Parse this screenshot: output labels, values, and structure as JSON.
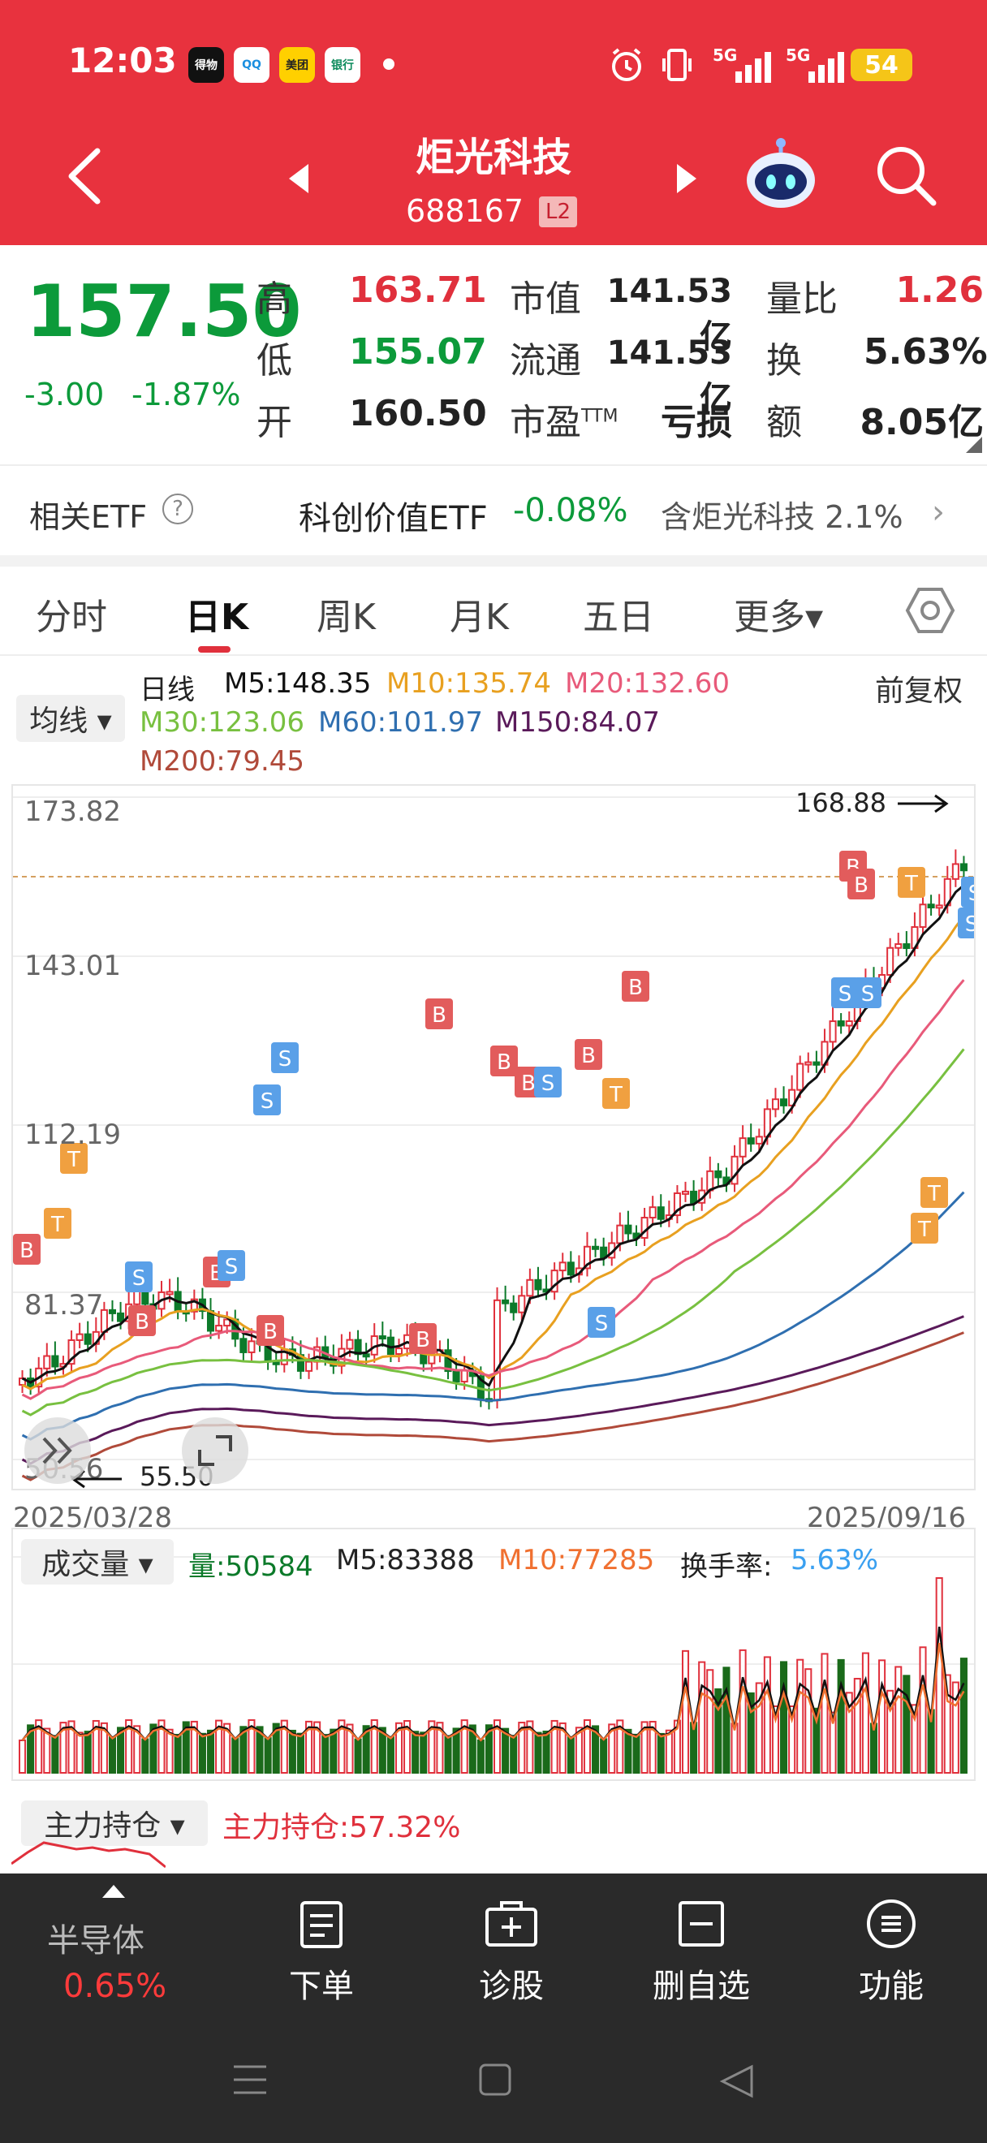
{
  "status_bar": {
    "time": "12:03",
    "apps": [
      "得物",
      "QQ",
      "美团",
      "银行"
    ],
    "net1": "5G",
    "net2": "5G",
    "battery": "54"
  },
  "header": {
    "stock_name": "炬光科技",
    "stock_code": "688167",
    "level_badge": "L2"
  },
  "quote": {
    "price": "157.50",
    "change": "-3.00",
    "change_pct": "-1.87%",
    "rows": [
      {
        "l1": "高",
        "v1": "163.71",
        "l2": "市值",
        "v2": "141.53亿",
        "l3": "量比",
        "v3": "1.26"
      },
      {
        "l1": "低",
        "v1": "155.07",
        "l2": "流通",
        "v2": "141.53亿",
        "l3": "换",
        "v3": "5.63%"
      },
      {
        "l1": "开",
        "v1": "160.50",
        "l2": "市盈",
        "l2_sup": "TTM",
        "v2": "亏损",
        "l3": "额",
        "v3": "8.05亿"
      }
    ]
  },
  "etf": {
    "label": "相关ETF",
    "help": "?",
    "name": "科创价值ETF",
    "change": "-0.08%",
    "contains": "含炬光科技 2.1%",
    "arrow": "›"
  },
  "tabs": [
    {
      "label": "分时"
    },
    {
      "label": "日K"
    },
    {
      "label": "周K"
    },
    {
      "label": "月K"
    },
    {
      "label": "五日"
    },
    {
      "label": "更多▾"
    }
  ],
  "indicators": {
    "ma_button": "均线 ▾",
    "period": "日线",
    "m5": "M5:148.35",
    "m10": "M10:135.74",
    "m20": "M20:132.60",
    "m30": "M30:123.06",
    "m60": "M60:101.97",
    "m150": "M150:84.07",
    "m200": "M200:79.45",
    "adjust": "前复权",
    "colors": {
      "m5": "#111111",
      "m10": "#e8a020",
      "m20": "#e85a7a",
      "m30": "#78c040",
      "m60": "#2f6fb0",
      "m150": "#5a1a5a",
      "m200": "#b04a3a"
    }
  },
  "chart": {
    "y_labels": [
      "173.82",
      "143.01",
      "112.19",
      "81.37",
      "50.56"
    ],
    "high_label": "168.88",
    "low_label": "55.50",
    "start_date": "2025/03/28",
    "end_date": "2025/09/16"
  },
  "volume": {
    "button": "成交量 ▾",
    "vol": "量:50584",
    "m5": "M5:83388",
    "m10": "M10:77285",
    "turnover_label": "换手率:",
    "turnover_val": "5.63%"
  },
  "main_position": {
    "button": "主力持仓 ▾",
    "text": "主力持仓:57.32%"
  },
  "toolbar": {
    "sector_name": "半导体",
    "sector_change": "0.65%",
    "items": [
      {
        "label": "下单"
      },
      {
        "label": "诊股"
      },
      {
        "label": "删自选"
      },
      {
        "label": "功能"
      }
    ]
  },
  "colors": {
    "brand_red": "#e8323e",
    "down_green": "#0c9a3a",
    "up_red": "#e0303c"
  }
}
